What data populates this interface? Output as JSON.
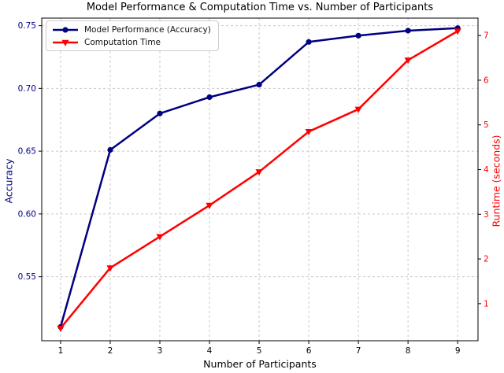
{
  "chart_data": {
    "type": "line",
    "title": "Model Performance & Computation Time vs. Number of Participants",
    "xlabel": "Number of Participants",
    "ylabel_left": "Accuracy",
    "ylabel_right": "Runtime (seconds)",
    "x": [
      1,
      2,
      3,
      4,
      5,
      6,
      7,
      8,
      9
    ],
    "series": [
      {
        "name": "Model Performance (Accuracy)",
        "axis": "left",
        "color": "#000080",
        "marker": "circle",
        "values": [
          0.51,
          0.651,
          0.68,
          0.693,
          0.703,
          0.737,
          0.742,
          0.746,
          0.748
        ]
      },
      {
        "name": "Computation Time",
        "axis": "right",
        "color": "#ff0000",
        "marker": "triangle-down",
        "values": [
          0.45,
          1.8,
          2.5,
          3.2,
          3.95,
          4.85,
          5.35,
          6.45,
          7.1
        ]
      }
    ],
    "x_ticks": [
      1,
      2,
      3,
      4,
      5,
      6,
      7,
      8,
      9
    ],
    "xlim": [
      0.62,
      9.41
    ],
    "left_ticks": [
      0.55,
      0.6,
      0.65,
      0.7,
      0.75
    ],
    "left_ylim": [
      0.499,
      0.756
    ],
    "right_ticks": [
      1,
      2,
      3,
      4,
      5,
      6,
      7
    ],
    "right_ylim": [
      0.17,
      7.39
    ],
    "grid": true,
    "grid_style": "dashed",
    "legend_position": "upper left",
    "colors": {
      "left_axis": "#000080",
      "right_axis": "#ff0000",
      "grid": "#c9c9c9",
      "spine": "#000000",
      "text": "#000000"
    }
  }
}
